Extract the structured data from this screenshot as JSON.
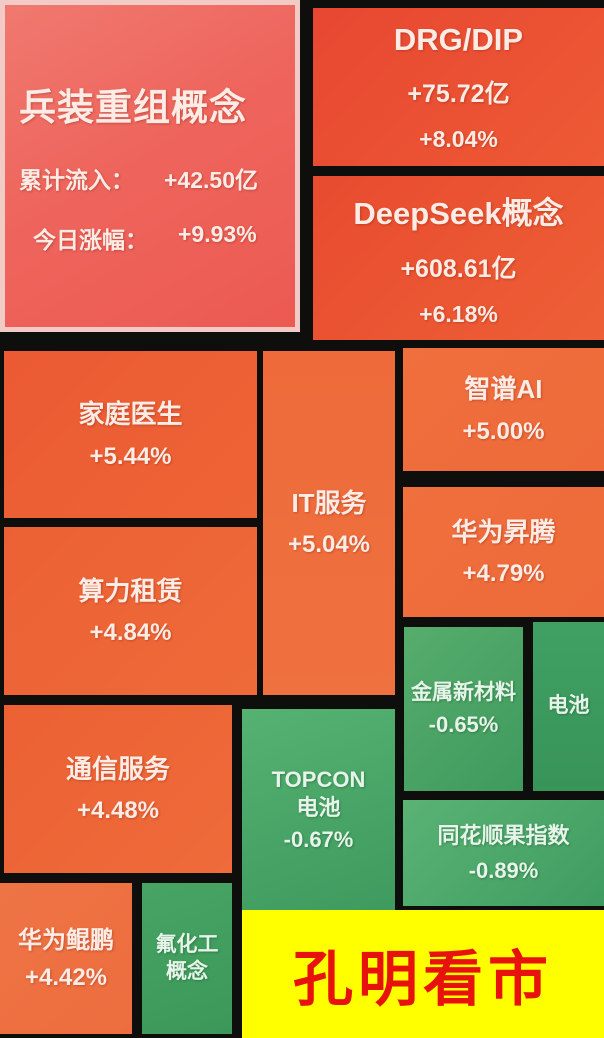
{
  "highlight": {
    "name": "兵装重组概念",
    "inflow_label": "累计流入：",
    "inflow_value": "+42.50亿",
    "change_label": "今日涨幅：",
    "change_value": "+9.93%"
  },
  "tiles": {
    "drg_dip": {
      "name": "DRG/DIP",
      "inflow": "+75.72亿",
      "change": "+8.04%"
    },
    "deepseek": {
      "name": "DeepSeek概念",
      "inflow": "+608.61亿",
      "change": "+6.18%"
    },
    "jiating_yisheng": {
      "name": "家庭医生",
      "change": "+5.44%"
    },
    "it_fuwu": {
      "name": "IT服务",
      "change": "+5.04%"
    },
    "zhipu_ai": {
      "name": "智谱AI",
      "change": "+5.00%"
    },
    "huawei_shengteng": {
      "name": "华为昇腾",
      "change": "+4.79%"
    },
    "suanli_zulin": {
      "name": "算力租赁",
      "change": "+4.84%"
    },
    "jinshu_xincailiao": {
      "name": "金属新材料",
      "change": "-0.65%"
    },
    "dianchi": {
      "name": "电池"
    },
    "tongxin_fuwu": {
      "name": "通信服务",
      "change": "+4.48%"
    },
    "topcon_dianchi": {
      "name": "TOPCON电池",
      "change": "-0.67%"
    },
    "ths_guo_index": {
      "name": "同花顺果指数",
      "change": "-0.89%"
    },
    "huawei_kunpeng": {
      "name": "华为鲲鹏",
      "change": "+4.42%"
    },
    "fuhuagong_gainian": {
      "name": "氟化工概念"
    }
  },
  "banner": {
    "text": "孔明看市"
  },
  "colors": {
    "background": "#0e0f0c",
    "up_strong": "#e84430",
    "up_mid": "#ed6334",
    "up_light": "#ef7040",
    "down_green": "#42a162",
    "highlight_fill": "#ee645c",
    "highlight_border": "#f2cbc6",
    "banner_bg": "#ffff00",
    "banner_text": "#e8120c"
  },
  "chart_data": {
    "type": "heatmap",
    "title": "",
    "legend_position": "none",
    "items": [
      {
        "name": "兵装重组概念",
        "cumulative_inflow_yi": 42.5,
        "change_pct": 9.93,
        "highlighted": true
      },
      {
        "name": "DRG/DIP",
        "cumulative_inflow_yi": 75.72,
        "change_pct": 8.04
      },
      {
        "name": "DeepSeek概念",
        "cumulative_inflow_yi": 608.61,
        "change_pct": 6.18
      },
      {
        "name": "家庭医生",
        "change_pct": 5.44
      },
      {
        "name": "IT服务",
        "change_pct": 5.04
      },
      {
        "name": "智谱AI",
        "change_pct": 5.0
      },
      {
        "name": "算力租赁",
        "change_pct": 4.84
      },
      {
        "name": "华为昇腾",
        "change_pct": 4.79
      },
      {
        "name": "通信服务",
        "change_pct": 4.48
      },
      {
        "name": "华为鲲鹏",
        "change_pct": 4.42
      },
      {
        "name": "金属新材料",
        "change_pct": -0.65
      },
      {
        "name": "TOPCON电池",
        "change_pct": -0.67
      },
      {
        "name": "同花顺果指数",
        "change_pct": -0.89
      },
      {
        "name": "电池",
        "change_pct": null
      },
      {
        "name": "氟化工概念",
        "change_pct": null
      }
    ]
  }
}
